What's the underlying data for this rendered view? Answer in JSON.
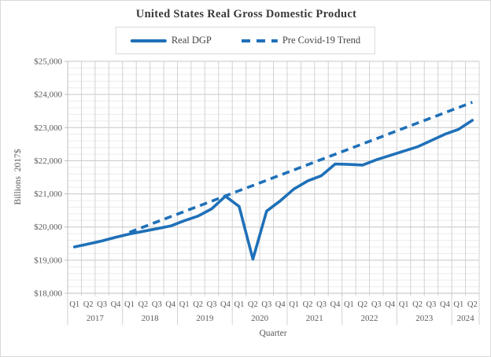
{
  "chart_title": "United States Real Gross Domestic Product",
  "legend": {
    "real_gdp_label": "Real DGP",
    "trend_label": "Pre Covid-19 Trend"
  },
  "colors": {
    "series_blue": "#1f70b8",
    "grid_major": "#c6c6c6",
    "grid_minor": "#ececec",
    "grid_vertical": "#d2d2d2",
    "axis_line": "#bfbfbf",
    "label_gray": "#595959",
    "title_gray": "#3a3a3a",
    "legend_border": "#d9d9d9"
  },
  "chart_data": {
    "type": "line",
    "title": "United States Real Gross Domestic Product",
    "xlabel": "Quarter",
    "ylabel": "Billions  2017$",
    "ylim": [
      18000,
      25000
    ],
    "y_major_step": 1000,
    "y_minor_step": 200,
    "y_tick_labels": [
      "$18,000",
      "$19,000",
      "$20,000",
      "$21,000",
      "$22,000",
      "$23,000",
      "$24,000",
      "$25,000"
    ],
    "grid": true,
    "legend_position": "top",
    "quarter_labels": [
      "Q1",
      "Q2",
      "Q3",
      "Q4"
    ],
    "years": [
      {
        "label": "2017",
        "quarters": 4
      },
      {
        "label": "2018",
        "quarters": 4
      },
      {
        "label": "2019",
        "quarters": 4
      },
      {
        "label": "2020",
        "quarters": 4
      },
      {
        "label": "2021",
        "quarters": 4
      },
      {
        "label": "2022",
        "quarters": 4
      },
      {
        "label": "2023",
        "quarters": 4
      },
      {
        "label": "2024",
        "quarters": 2
      }
    ],
    "x_categories": [
      "2017 Q1",
      "2017 Q2",
      "2017 Q3",
      "2017 Q4",
      "2018 Q1",
      "2018 Q2",
      "2018 Q3",
      "2018 Q4",
      "2019 Q1",
      "2019 Q2",
      "2019 Q3",
      "2019 Q4",
      "2020 Q1",
      "2020 Q2",
      "2020 Q3",
      "2020 Q4",
      "2021 Q1",
      "2021 Q2",
      "2021 Q3",
      "2021 Q4",
      "2022 Q1",
      "2022 Q2",
      "2022 Q3",
      "2022 Q4",
      "2023 Q1",
      "2023 Q2",
      "2023 Q3",
      "2023 Q4",
      "2024 Q1",
      "2024 Q2"
    ],
    "series": [
      {
        "name": "Real DGP",
        "style": "solid",
        "values": [
          19400,
          19490,
          19580,
          19690,
          19790,
          19870,
          19950,
          20030,
          20190,
          20330,
          20550,
          20930,
          20620,
          19030,
          20480,
          20790,
          21150,
          21390,
          21550,
          21900,
          21890,
          21870,
          22030,
          22160,
          22290,
          22420,
          22610,
          22800,
          22950,
          23220
        ]
      },
      {
        "name": "Pre Covid-19 Trend",
        "style": "dashed",
        "values": [
          null,
          null,
          null,
          null,
          19840,
          19997,
          20154,
          20311,
          20468,
          20625,
          20782,
          20939,
          21096,
          21253,
          21410,
          21567,
          21724,
          21881,
          22038,
          22195,
          22352,
          22509,
          22666,
          22823,
          22980,
          23137,
          23294,
          23451,
          23608,
          23765
        ]
      }
    ]
  }
}
